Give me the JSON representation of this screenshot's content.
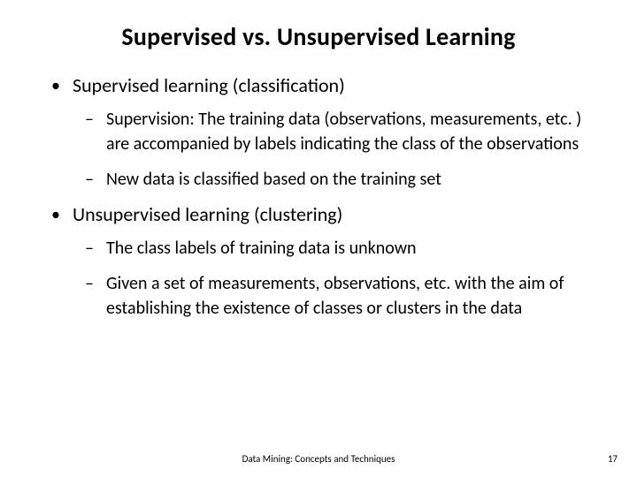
{
  "slide": {
    "title": "Supervised vs. Unsupervised Learning",
    "bullets": [
      {
        "text": "Supervised learning (classification)",
        "subs": [
          "Supervision: The training data (observations, measurements, etc. ) are accompanied by labels indicating the class of the observations",
          "New data is classified based on the training set"
        ]
      },
      {
        "text": "Unsupervised learning (clustering)",
        "subs": [
          "The class labels of training data is unknown",
          "Given a set of measurements, observations, etc. with the aim of establishing the existence of classes or clusters in the data"
        ]
      }
    ],
    "footer": "Data Mining: Concepts and Techniques",
    "page": "17"
  },
  "style": {
    "background_color": "#ffffff",
    "text_color": "#000000",
    "title_fontsize": 28,
    "title_weight": 700,
    "l1_fontsize": 22,
    "l2_fontsize": 20,
    "footer_fontsize": 11,
    "font_family": "Calibri"
  }
}
